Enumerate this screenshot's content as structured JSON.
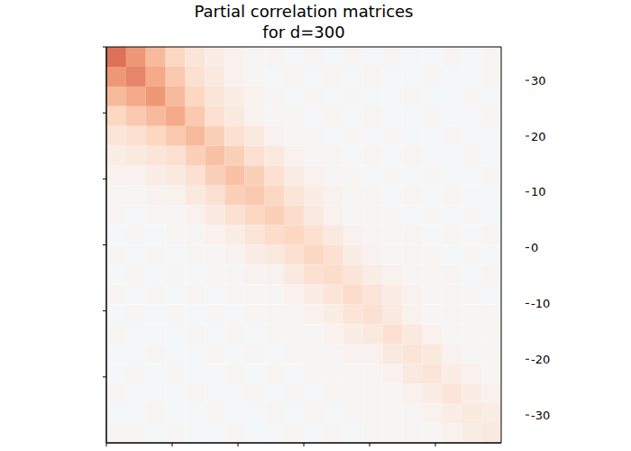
{
  "chart_data": {
    "type": "heatmap",
    "title": "Partial correlation matrices\nfor d=300",
    "xlim": [
      0,
      300
    ],
    "ylim": [
      0,
      300
    ],
    "xticks": [
      0,
      50,
      100,
      150,
      200,
      250
    ],
    "yticks": [
      0,
      50,
      100,
      150,
      200,
      250
    ],
    "tick_labels": false,
    "color": "RdBu_r",
    "colorbar": {
      "range": [
        -35,
        36
      ],
      "ticks": [
        -30,
        -20,
        -10,
        0,
        10,
        20,
        30
      ]
    },
    "cells": [
      [
        20,
        16,
        12,
        8,
        5,
        3,
        2,
        1,
        1,
        0,
        1,
        0,
        1,
        0,
        1,
        0,
        0,
        1,
        0,
        1
      ],
      [
        16,
        18,
        14,
        10,
        6,
        4,
        2,
        1,
        0,
        1,
        0,
        1,
        0,
        1,
        0,
        0,
        1,
        0,
        0,
        1
      ],
      [
        12,
        14,
        16,
        12,
        8,
        5,
        3,
        2,
        1,
        0,
        1,
        0,
        1,
        0,
        0,
        1,
        0,
        0,
        1,
        0
      ],
      [
        8,
        10,
        12,
        14,
        10,
        6,
        4,
        2,
        1,
        1,
        0,
        1,
        0,
        1,
        0,
        0,
        1,
        0,
        0,
        1
      ],
      [
        5,
        6,
        8,
        10,
        12,
        9,
        6,
        4,
        2,
        1,
        1,
        0,
        1,
        0,
        1,
        0,
        0,
        1,
        0,
        0
      ],
      [
        3,
        4,
        5,
        6,
        9,
        11,
        9,
        6,
        4,
        2,
        1,
        1,
        0,
        1,
        0,
        1,
        0,
        0,
        1,
        0
      ],
      [
        2,
        2,
        3,
        4,
        6,
        9,
        11,
        9,
        6,
        3,
        2,
        1,
        1,
        0,
        1,
        0,
        1,
        0,
        0,
        1
      ],
      [
        1,
        1,
        2,
        2,
        4,
        6,
        9,
        10,
        8,
        5,
        3,
        2,
        1,
        1,
        0,
        1,
        0,
        1,
        0,
        0
      ],
      [
        1,
        0,
        1,
        1,
        2,
        4,
        6,
        8,
        9,
        7,
        4,
        2,
        1,
        1,
        1,
        0,
        1,
        0,
        1,
        0
      ],
      [
        0,
        1,
        0,
        1,
        1,
        2,
        3,
        5,
        7,
        8,
        6,
        4,
        2,
        1,
        1,
        1,
        0,
        1,
        0,
        1
      ],
      [
        1,
        0,
        1,
        0,
        1,
        1,
        2,
        3,
        4,
        6,
        8,
        6,
        3,
        2,
        1,
        1,
        1,
        0,
        1,
        0
      ],
      [
        0,
        1,
        0,
        1,
        0,
        1,
        1,
        2,
        2,
        4,
        6,
        7,
        5,
        3,
        2,
        1,
        1,
        1,
        0,
        1
      ],
      [
        1,
        0,
        1,
        0,
        1,
        0,
        1,
        1,
        1,
        2,
        3,
        5,
        7,
        5,
        3,
        2,
        1,
        1,
        1,
        0
      ],
      [
        0,
        1,
        0,
        1,
        0,
        1,
        0,
        1,
        1,
        1,
        2,
        3,
        5,
        6,
        4,
        2,
        1,
        1,
        1,
        1
      ],
      [
        1,
        0,
        0,
        0,
        1,
        0,
        1,
        0,
        1,
        1,
        1,
        2,
        3,
        4,
        6,
        4,
        2,
        1,
        1,
        1
      ],
      [
        0,
        0,
        1,
        0,
        0,
        1,
        0,
        1,
        0,
        1,
        1,
        1,
        2,
        2,
        4,
        5,
        4,
        2,
        1,
        1
      ],
      [
        0,
        1,
        0,
        1,
        0,
        0,
        1,
        0,
        1,
        0,
        1,
        1,
        1,
        1,
        2,
        4,
        5,
        3,
        2,
        1
      ],
      [
        1,
        0,
        0,
        0,
        1,
        0,
        0,
        1,
        0,
        1,
        0,
        1,
        1,
        1,
        1,
        2,
        3,
        5,
        3,
        2
      ],
      [
        0,
        0,
        1,
        0,
        0,
        1,
        0,
        0,
        1,
        0,
        1,
        0,
        1,
        1,
        1,
        1,
        2,
        3,
        4,
        3
      ],
      [
        1,
        1,
        0,
        1,
        0,
        0,
        1,
        0,
        0,
        1,
        0,
        1,
        0,
        1,
        1,
        1,
        1,
        2,
        3,
        4
      ]
    ]
  }
}
